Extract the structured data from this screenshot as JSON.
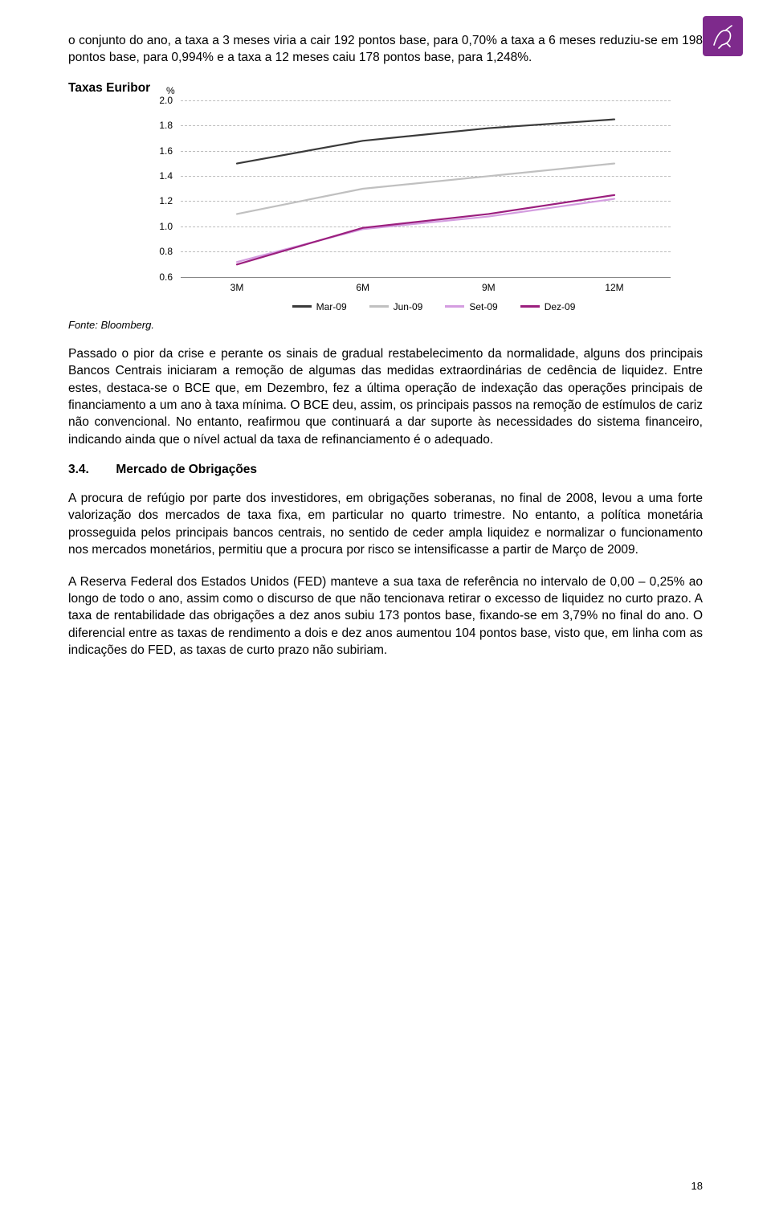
{
  "logo_bg": "#7e2a8c",
  "intro_paragraph": "o conjunto do ano, a taxa a 3 meses viria a cair 192 pontos base, para 0,70% a taxa a 6 meses reduziu-se em 198 pontos base, para 0,994% e a taxa a 12 meses caiu 178 pontos base, para 1,248%.",
  "chart": {
    "title": "Taxas Euribor",
    "y_unit": "%",
    "y_ticks": [
      "2.0",
      "1.8",
      "1.6",
      "1.4",
      "1.2",
      "1.0",
      "0.8",
      "0.6"
    ],
    "y_min": 0.6,
    "y_max": 2.0,
    "x_labels": [
      "3M",
      "6M",
      "9M",
      "12M"
    ],
    "grid_color": "#bdbdbd",
    "series": [
      {
        "label": "Mar-09",
        "color": "#3a3a3a",
        "values": [
          1.5,
          1.68,
          1.78,
          1.85
        ]
      },
      {
        "label": "Jun-09",
        "color": "#c0c0c0",
        "values": [
          1.1,
          1.3,
          1.4,
          1.5
        ]
      },
      {
        "label": "Set-09",
        "color": "#d49de0",
        "values": [
          0.72,
          0.98,
          1.08,
          1.22
        ]
      },
      {
        "label": "Dez-09",
        "color": "#9b1f7e",
        "values": [
          0.7,
          0.99,
          1.1,
          1.25
        ]
      }
    ],
    "source": "Fonte: Bloomberg.",
    "line_width": 2.2,
    "tick_fontsize": 12
  },
  "para_after_chart": "Passado o pior da crise e perante os sinais de gradual restabelecimento da normalidade, alguns dos principais Bancos Centrais iniciaram a remoção de algumas das medidas extraordinárias de cedência de liquidez. Entre estes, destaca-se o BCE que, em Dezembro, fez a última operação de indexação das operações principais de financiamento a um ano à taxa mínima. O BCE deu, assim, os principais passos na remoção de estímulos de cariz não convencional. No entanto, reafirmou que continuará a dar suporte às necessidades do sistema financeiro, indicando ainda que o nível actual da taxa de refinanciamento é o adequado.",
  "section": {
    "number": "3.4.",
    "title": "Mercado de Obrigações"
  },
  "para_bonds_1": "A procura de refúgio por parte dos investidores, em obrigações soberanas, no final de 2008, levou a uma forte valorização dos mercados de taxa fixa, em particular no quarto trimestre. No entanto, a política monetária prosseguida pelos principais bancos centrais, no sentido de ceder ampla liquidez e normalizar o funcionamento nos mercados monetários, permitiu que a procura por risco se intensificasse a partir de Março de 2009.",
  "para_bonds_2": "A Reserva Federal dos Estados Unidos (FED) manteve a sua taxa de referência no intervalo de 0,00 – 0,25% ao longo de todo o ano, assim como o discurso de que não tencionava retirar o excesso de liquidez no curto prazo. A taxa de rentabilidade das obrigações a dez anos subiu 173 pontos base, fixando-se em 3,79% no final do ano. O diferencial entre as taxas de rendimento a dois e dez anos aumentou 104 pontos base, visto que, em linha com as indicações do FED, as taxas de curto prazo não subiriam.",
  "page_number": "18"
}
